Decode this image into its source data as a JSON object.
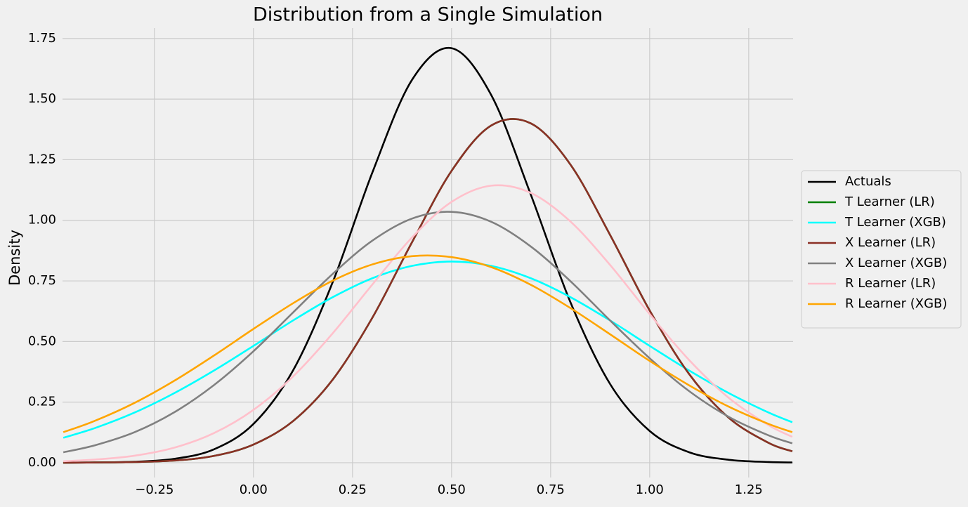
{
  "chart_data": {
    "type": "line",
    "title": "Distribution from a Single Simulation",
    "y_label": "Density",
    "x": [
      -0.48,
      -0.4,
      -0.3,
      -0.2,
      -0.1,
      0,
      0.1,
      0.2,
      0.3,
      0.4,
      0.5,
      0.6,
      0.7,
      0.8,
      0.9,
      1.0,
      1.1,
      1.2,
      1.3,
      1.36
    ],
    "series": [
      {
        "name": "Actuals",
        "color": "#000000",
        "values": [
          0.0,
          0.001,
          0.004,
          0.016,
          0.055,
          0.16,
          0.381,
          0.745,
          1.197,
          1.579,
          1.71,
          1.517,
          1.106,
          0.662,
          0.325,
          0.131,
          0.043,
          0.012,
          0.003,
          0.001
        ]
      },
      {
        "name": "T Learner (LR)",
        "color": "#008000",
        "values": [
          0.0,
          0.001,
          0.003,
          0.009,
          0.028,
          0.075,
          0.172,
          0.343,
          0.598,
          0.909,
          1.204,
          1.391,
          1.4,
          1.23,
          0.94,
          0.628,
          0.365,
          0.185,
          0.082,
          0.047
        ]
      },
      {
        "name": "T Learner (XGB)",
        "color": "#00ffff",
        "values": [
          0.103,
          0.143,
          0.207,
          0.287,
          0.38,
          0.482,
          0.587,
          0.683,
          0.761,
          0.812,
          0.83,
          0.812,
          0.761,
          0.683,
          0.587,
          0.482,
          0.38,
          0.287,
          0.207,
          0.167
        ]
      },
      {
        "name": "X Learner (LR)",
        "color": "#8b3026",
        "values": [
          0.0,
          0.001,
          0.003,
          0.009,
          0.028,
          0.075,
          0.172,
          0.343,
          0.598,
          0.909,
          1.204,
          1.391,
          1.4,
          1.23,
          0.94,
          0.628,
          0.365,
          0.185,
          0.082,
          0.047
        ]
      },
      {
        "name": "X Learner (XGB)",
        "color": "#808080",
        "values": [
          0.043,
          0.072,
          0.126,
          0.208,
          0.32,
          0.46,
          0.62,
          0.779,
          0.916,
          1.007,
          1.035,
          0.994,
          0.892,
          0.749,
          0.587,
          0.431,
          0.295,
          0.189,
          0.113,
          0.08
        ]
      },
      {
        "name": "R Learner (LR)",
        "color": "#ffc0cb",
        "values": [
          0.006,
          0.013,
          0.029,
          0.062,
          0.122,
          0.218,
          0.356,
          0.534,
          0.735,
          0.929,
          1.076,
          1.143,
          1.113,
          0.995,
          0.816,
          0.613,
          0.423,
          0.267,
          0.155,
          0.107
        ]
      },
      {
        "name": "R Learner (XGB)",
        "color": "#ffa500",
        "values": [
          0.126,
          0.173,
          0.247,
          0.338,
          0.442,
          0.552,
          0.658,
          0.751,
          0.818,
          0.852,
          0.848,
          0.807,
          0.734,
          0.638,
          0.53,
          0.42,
          0.319,
          0.231,
          0.16,
          0.126
        ]
      }
    ],
    "xlim": [
      -0.482,
      1.362
    ],
    "ylim": [
      -0.061,
      1.793
    ],
    "xticks": [
      {
        "value": -0.25,
        "label": "−0.25"
      },
      {
        "value": 0,
        "label": "0.00"
      },
      {
        "value": 0.25,
        "label": "0.25"
      },
      {
        "value": 0.5,
        "label": "0.50"
      },
      {
        "value": 0.75,
        "label": "0.75"
      },
      {
        "value": 1.0,
        "label": "1.00"
      },
      {
        "value": 1.25,
        "label": "1.25"
      }
    ],
    "yticks": [
      {
        "value": 0,
        "label": "0.00"
      },
      {
        "value": 0.25,
        "label": "0.25"
      },
      {
        "value": 0.5,
        "label": "0.50"
      },
      {
        "value": 0.75,
        "label": "0.75"
      },
      {
        "value": 1.0,
        "label": "1.00"
      },
      {
        "value": 1.25,
        "label": "1.25"
      },
      {
        "value": 1.5,
        "label": "1.50"
      },
      {
        "value": 1.75,
        "label": "1.75"
      }
    ],
    "grid": true,
    "legend": "right"
  }
}
